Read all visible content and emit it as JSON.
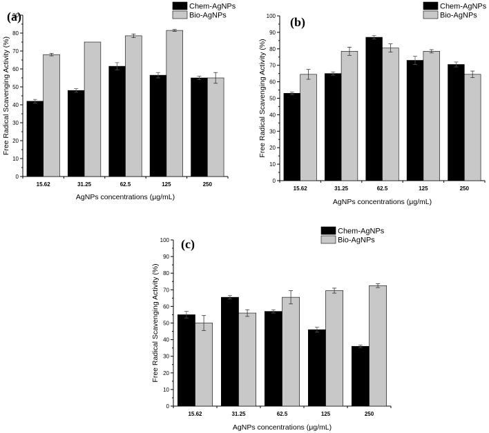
{
  "colors": {
    "chem": "#000000",
    "bio": "#c8c8c8",
    "axis": "#000000"
  },
  "chart_data": [
    {
      "type": "bar",
      "panel": "(a)",
      "categories": [
        "15.62",
        "31.25",
        "62.5",
        "125",
        "250"
      ],
      "series": [
        {
          "name": "Chem-AgNPs",
          "values": [
            42,
            48,
            61.5,
            56.5,
            55
          ],
          "errors": [
            1,
            1,
            2,
            1.5,
            1
          ]
        },
        {
          "name": "Bio-AgNPs",
          "values": [
            68,
            75,
            78.5,
            81.5,
            55
          ],
          "errors": [
            0.7,
            0,
            1,
            0.5,
            3
          ]
        }
      ],
      "xlabel": "AgNPs concentrations (μg/mL)",
      "ylabel": "Free Radical Scavenging Activity (%)",
      "ylim": [
        0,
        90
      ],
      "yticks": [
        0,
        10,
        20,
        30,
        40,
        50,
        60,
        70,
        80,
        90
      ],
      "legend_position": "top-right"
    },
    {
      "type": "bar",
      "panel": "(b)",
      "categories": [
        "15.62",
        "31.25",
        "62.5",
        "125",
        "250"
      ],
      "series": [
        {
          "name": "Chem-AgNPs",
          "values": [
            53,
            65,
            87,
            73,
            70.5
          ],
          "errors": [
            0.8,
            1,
            1,
            2.5,
            1.5
          ]
        },
        {
          "name": "Bio-AgNPs",
          "values": [
            64.5,
            78.5,
            80.5,
            78.5,
            64.5
          ],
          "errors": [
            3,
            2.5,
            2.5,
            1,
            2
          ]
        }
      ],
      "xlabel": "AgNPs concentrations (μg/mL)",
      "ylabel": "Free Radical Scavenging Activity (%)",
      "ylim": [
        0,
        100
      ],
      "yticks": [
        0,
        10,
        20,
        30,
        40,
        50,
        60,
        70,
        80,
        90,
        100
      ],
      "legend_position": "top-right"
    },
    {
      "type": "bar",
      "panel": "(c)",
      "categories": [
        "15.62",
        "31.25",
        "62.5",
        "125",
        "250"
      ],
      "series": [
        {
          "name": "Chem-AgNPs",
          "values": [
            55,
            65.5,
            57,
            46,
            36
          ],
          "errors": [
            2,
            1,
            1,
            1.5,
            0.8
          ]
        },
        {
          "name": "Bio-AgNPs",
          "values": [
            50,
            56,
            65.5,
            69.5,
            72.5
          ],
          "errors": [
            4.5,
            2,
            4,
            1.5,
            1.2
          ]
        }
      ],
      "xlabel": "AgNPs concentrations (μg/mL)",
      "ylabel": "Free Radical Scavenging Activity (%)",
      "ylim": [
        0,
        100
      ],
      "yticks": [
        0,
        10,
        20,
        30,
        40,
        50,
        60,
        70,
        80,
        90,
        100
      ],
      "legend_position": "top-left"
    }
  ]
}
